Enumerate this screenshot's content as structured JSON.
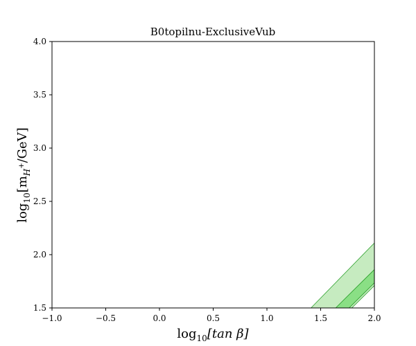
{
  "chart_data": {
    "type": "area",
    "title": "B0topilnu-ExclusiveVub",
    "xlabel_parts": {
      "fn": "log",
      "sub": "10",
      "body": "[tan β]"
    },
    "ylabel_parts": {
      "fn": "log",
      "sub": "10",
      "pre": "[m",
      "sub2": "H",
      "sup": "+",
      "post": "/GeV]"
    },
    "xlim": [
      -1.0,
      2.0
    ],
    "ylim": [
      1.5,
      4.0
    ],
    "xticks": [
      -1.0,
      -0.5,
      0.0,
      0.5,
      1.0,
      1.5,
      2.0
    ],
    "xtick_labels": [
      "−1.0",
      "−0.5",
      "0.0",
      "0.5",
      "1.0",
      "1.5",
      "2.0"
    ],
    "yticks": [
      1.5,
      2.0,
      2.5,
      3.0,
      3.5,
      4.0
    ],
    "ytick_labels": [
      "1.5",
      "2.0",
      "2.5",
      "3.0",
      "3.5",
      "4.0"
    ],
    "grid": false,
    "series": [
      {
        "fill": "#c6ebc0",
        "stroke": "#2ca02c",
        "polygon": [
          [
            1.41,
            1.5
          ],
          [
            2.0,
            2.11
          ],
          [
            2.0,
            1.86
          ],
          [
            1.64,
            1.5
          ]
        ]
      },
      {
        "fill": "#8adf85",
        "stroke": "#2ca02c",
        "polygon": [
          [
            1.64,
            1.5
          ],
          [
            2.0,
            1.86
          ],
          [
            2.0,
            1.735
          ],
          [
            1.765,
            1.5
          ]
        ]
      },
      {
        "fill": "#c6ebc0",
        "stroke": "#2ca02c",
        "polygon": [
          [
            1.765,
            1.5
          ],
          [
            2.0,
            1.735
          ],
          [
            2.0,
            1.71
          ],
          [
            1.79,
            1.5
          ]
        ]
      }
    ]
  }
}
